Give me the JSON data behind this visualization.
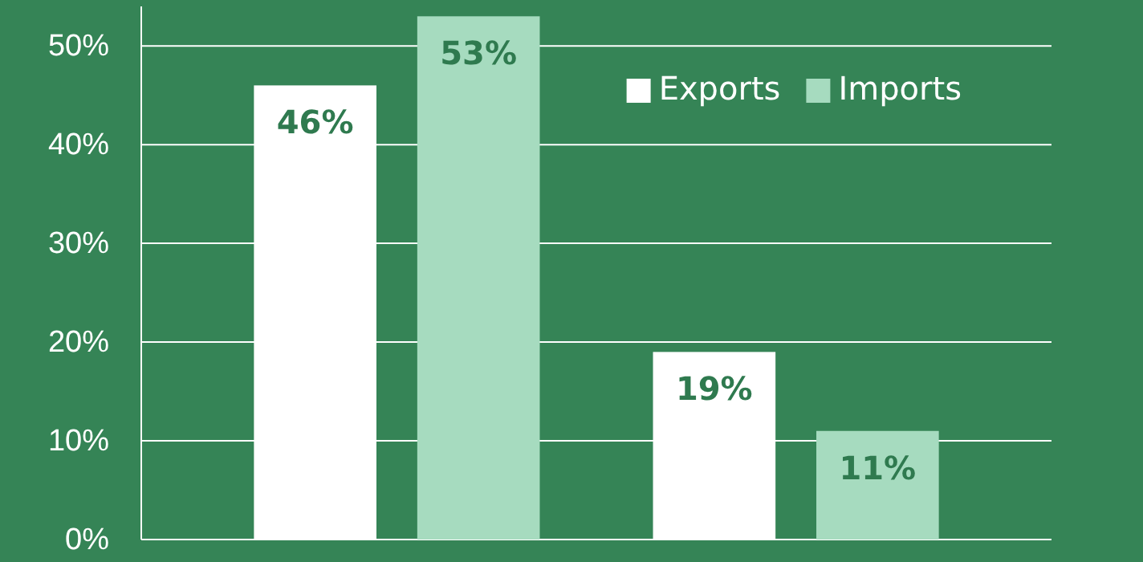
{
  "chart_data": {
    "type": "bar",
    "categories": [
      null,
      null
    ],
    "series": [
      {
        "name": "Exports",
        "color": "#ffffff",
        "values": [
          46,
          19
        ],
        "value_labels": [
          "46%",
          "19%"
        ]
      },
      {
        "name": "Imports",
        "color": "#a6dbbf",
        "values": [
          53,
          11
        ],
        "value_labels": [
          "53%",
          "11%"
        ]
      }
    ],
    "ylim": [
      0,
      54
    ],
    "yticks": [
      {
        "value": 0,
        "label": "0%"
      },
      {
        "value": 10,
        "label": "10%"
      },
      {
        "value": 20,
        "label": "20%"
      },
      {
        "value": 30,
        "label": "30%"
      },
      {
        "value": 40,
        "label": "40%"
      },
      {
        "value": 50,
        "label": "50%"
      }
    ],
    "grid": "y",
    "legend": "top right",
    "tick_labels": "y"
  }
}
